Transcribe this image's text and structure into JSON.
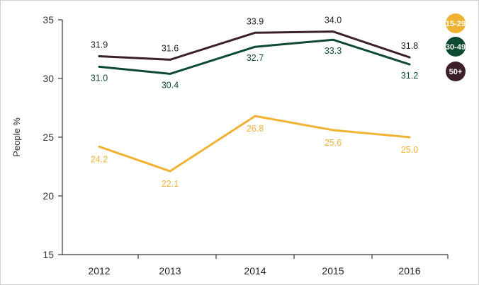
{
  "chart_data": {
    "type": "line",
    "x": [
      "2012",
      "2013",
      "2014",
      "2015",
      "2016"
    ],
    "ylabel": "People %",
    "xlabel": "",
    "title": "",
    "ylim": [
      15,
      35
    ],
    "yticks": [
      "15",
      "20",
      "25",
      "30",
      "35"
    ],
    "grid": false,
    "legend_position": "right",
    "series": [
      {
        "name": "15-29",
        "color": "#f0b233",
        "values": [
          24.2,
          22.1,
          26.8,
          25.6,
          25.0
        ],
        "labels": [
          "24.2",
          "22.1",
          "26.8",
          "25.6",
          "25.0"
        ]
      },
      {
        "name": "30-49",
        "color": "#0e4a2f",
        "values": [
          31.0,
          30.4,
          32.7,
          33.3,
          31.2
        ],
        "labels": [
          "31.0",
          "30.4",
          "32.7",
          "33.3",
          "31.2"
        ]
      },
      {
        "name": "50+",
        "color": "#3b1f2b",
        "values": [
          31.9,
          31.6,
          33.9,
          34.0,
          31.8
        ],
        "labels": [
          "31.9",
          "31.6",
          "33.9",
          "34.0",
          "31.8"
        ]
      }
    ]
  }
}
